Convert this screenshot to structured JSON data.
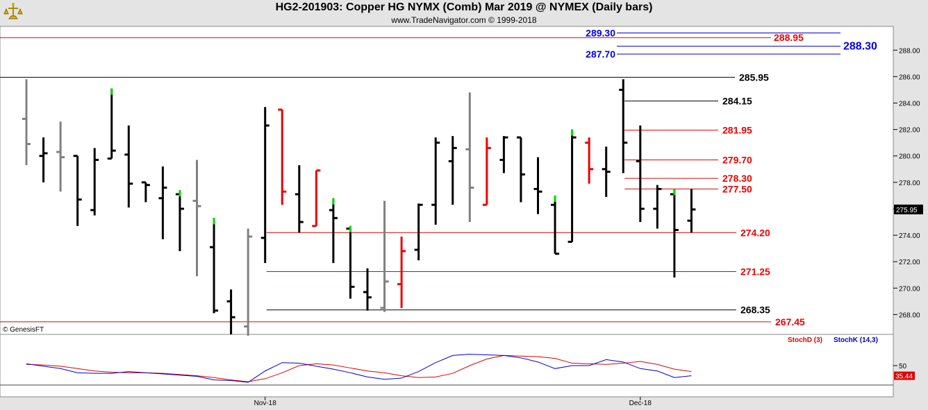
{
  "header": {
    "title": "HG2-201903:  Copper HG NYMX (Comb) Mar 2019 @ NYMEX  (Daily bars)",
    "subtitle": "www.TradeNavigator.com © 1999-2018",
    "watermark": "© GenesisFT"
  },
  "colors": {
    "up_bar": "#000000",
    "gray_bar": "#808080",
    "red_bar": "#ee0000",
    "green_tick": "#00dd00",
    "red_line": "#dd0000",
    "blue_line": "#0000cc",
    "stoch_d": "#dd0000",
    "stoch_k": "#0000cc"
  },
  "chart_data": [
    {
      "type": "ohlc",
      "title": "HG2-201903: Copper HG NYMX (Comb) Mar 2019 @ NYMEX (Daily bars)",
      "ylim": [
        266.5,
        289.8
      ],
      "yticks": [
        268.0,
        270.0,
        272.0,
        274.0,
        276.0,
        278.0,
        280.0,
        282.0,
        284.0,
        286.0,
        288.0
      ],
      "ytick_labels": [
        "268.00",
        "270.00",
        "272.00",
        "274.00",
        "276.00",
        "278.00",
        "280.00",
        "282.00",
        "284.00",
        "286.00",
        "288.00"
      ],
      "last_price": 275.95,
      "last_price_label": "275.95",
      "x_labels": [
        {
          "label": "Nov-18",
          "bar": 14
        },
        {
          "label": "Dec-18",
          "bar": 36
        }
      ],
      "bars": [
        {
          "o": 282.8,
          "h": 285.8,
          "l": 279.3,
          "c": 280.9,
          "color": "gray"
        },
        {
          "o": 280.0,
          "h": 281.4,
          "l": 278.0,
          "c": 280.2,
          "color": "black"
        },
        {
          "o": 280.3,
          "h": 282.6,
          "l": 277.3,
          "c": 279.9,
          "color": "gray"
        },
        {
          "o": 280.0,
          "h": 280.0,
          "l": 274.7,
          "c": 276.7,
          "color": "black"
        },
        {
          "o": 275.9,
          "h": 280.6,
          "l": 275.5,
          "c": 279.7,
          "color": "black"
        },
        {
          "o": 279.8,
          "h": 285.1,
          "l": 279.8,
          "c": 280.4,
          "color": "black",
          "green": true
        },
        {
          "o": 280.1,
          "h": 282.3,
          "l": 276.1,
          "c": 277.9,
          "color": "black"
        },
        {
          "o": 278.0,
          "h": 278.0,
          "l": 276.5,
          "c": 277.8,
          "color": "black"
        },
        {
          "o": 276.8,
          "h": 279.2,
          "l": 273.7,
          "c": 277.6,
          "color": "black"
        },
        {
          "o": 277.1,
          "h": 277.4,
          "l": 272.8,
          "c": 276.0,
          "color": "black",
          "green": true
        },
        {
          "o": 276.6,
          "h": 279.7,
          "l": 270.9,
          "c": 276.2,
          "color": "gray"
        },
        {
          "o": 273.1,
          "h": 275.3,
          "l": 268.1,
          "c": 268.3,
          "color": "black",
          "green": true
        },
        {
          "o": 269.0,
          "h": 269.9,
          "l": 266.5,
          "c": 267.8,
          "color": "black"
        },
        {
          "o": 267.1,
          "h": 274.5,
          "l": 266.4,
          "c": 273.9,
          "color": "gray"
        },
        {
          "o": 273.8,
          "h": 283.7,
          "l": 271.9,
          "c": 282.3,
          "color": "black"
        },
        {
          "o": 283.5,
          "h": 283.5,
          "l": 276.3,
          "c": 277.3,
          "color": "red"
        },
        {
          "o": 277.1,
          "h": 279.3,
          "l": 274.2,
          "c": 275.0,
          "color": "black"
        },
        {
          "o": 274.7,
          "h": 278.9,
          "l": 274.7,
          "c": 278.9,
          "color": "red"
        },
        {
          "o": 275.9,
          "h": 276.8,
          "l": 271.9,
          "c": 275.3,
          "color": "black",
          "green": true
        },
        {
          "o": 274.5,
          "h": 274.7,
          "l": 269.2,
          "c": 270.1,
          "color": "black",
          "green": true
        },
        {
          "o": 269.7,
          "h": 271.5,
          "l": 268.3,
          "c": 269.3,
          "color": "black"
        },
        {
          "o": 268.5,
          "h": 276.6,
          "l": 268.2,
          "c": 270.5,
          "color": "gray"
        },
        {
          "o": 270.3,
          "h": 273.9,
          "l": 268.5,
          "c": 272.8,
          "color": "red"
        },
        {
          "o": 272.9,
          "h": 276.4,
          "l": 272.1,
          "c": 276.3,
          "color": "black"
        },
        {
          "o": 276.3,
          "h": 281.4,
          "l": 274.8,
          "c": 281.0,
          "color": "black"
        },
        {
          "o": 279.6,
          "h": 281.5,
          "l": 276.3,
          "c": 280.6,
          "color": "black"
        },
        {
          "o": 280.5,
          "h": 284.8,
          "l": 275.0,
          "c": 277.6,
          "color": "gray"
        },
        {
          "o": 276.3,
          "h": 281.4,
          "l": 276.3,
          "c": 280.6,
          "color": "red"
        },
        {
          "o": 279.7,
          "h": 281.5,
          "l": 278.7,
          "c": 281.4,
          "color": "black"
        },
        {
          "o": 281.4,
          "h": 281.4,
          "l": 276.5,
          "c": 278.6,
          "color": "black"
        },
        {
          "o": 277.5,
          "h": 279.9,
          "l": 275.6,
          "c": 277.3,
          "color": "black"
        },
        {
          "o": 276.3,
          "h": 277.0,
          "l": 272.6,
          "c": 272.6,
          "color": "black",
          "green": true
        },
        {
          "o": 273.5,
          "h": 282.0,
          "l": 273.5,
          "c": 281.4,
          "color": "black",
          "green": true
        },
        {
          "o": 281.0,
          "h": 281.4,
          "l": 277.9,
          "c": 279.0,
          "color": "red"
        },
        {
          "o": 279.0,
          "h": 280.7,
          "l": 276.9,
          "c": 278.8,
          "color": "black"
        },
        {
          "o": 285.0,
          "h": 285.8,
          "l": 278.7,
          "c": 281.0,
          "color": "black"
        },
        {
          "o": 279.6,
          "h": 282.3,
          "l": 275.0,
          "c": 276.0,
          "color": "black"
        },
        {
          "o": 276.0,
          "h": 277.8,
          "l": 274.5,
          "c": 277.5,
          "color": "black"
        },
        {
          "o": 277.1,
          "h": 277.5,
          "l": 270.8,
          "c": 274.4,
          "color": "black",
          "green": true
        },
        {
          "o": 275.1,
          "h": 277.5,
          "l": 274.2,
          "c": 275.95,
          "color": "black"
        }
      ],
      "levels": [
        {
          "value": 289.3,
          "label": "289.30",
          "color": "blue",
          "label_side": "left",
          "x_from_bar": null
        },
        {
          "value": 288.95,
          "label": "288.95",
          "color": "red",
          "label_side": "right",
          "x_from_bar": null
        },
        {
          "value": 288.3,
          "label": "288.30",
          "color": "blue",
          "label_side": "right",
          "x_from_bar": null
        },
        {
          "value": 287.7,
          "label": "287.70",
          "color": "blue",
          "label_side": "left",
          "x_from_bar": null
        },
        {
          "value": 285.95,
          "label": "285.95",
          "color": "black",
          "label_side": "right",
          "x_from_bar": 0
        },
        {
          "value": 284.15,
          "label": "284.15",
          "color": "black",
          "label_side": "right",
          "x_from_bar": 35
        },
        {
          "value": 281.95,
          "label": "281.95",
          "color": "red",
          "label_side": "right",
          "x_from_bar": 35
        },
        {
          "value": 279.7,
          "label": "279.70",
          "color": "red",
          "label_side": "right",
          "x_from_bar": 35
        },
        {
          "value": 278.3,
          "label": "278.30",
          "color": "red",
          "label_side": "right",
          "x_from_bar": 35
        },
        {
          "value": 277.5,
          "label": "277.50",
          "color": "red",
          "label_side": "right",
          "x_from_bar": 35
        },
        {
          "value": 274.2,
          "label": "274.20",
          "color": "red",
          "label_side": "right",
          "x_from_bar": 14
        },
        {
          "value": 271.25,
          "label": "271.25",
          "color": "red",
          "label_side": "right",
          "x_from_bar": 14
        },
        {
          "value": 268.35,
          "label": "268.35",
          "color": "black",
          "label_side": "right",
          "x_from_bar": 14
        },
        {
          "value": 267.45,
          "label": "267.45",
          "color": "red",
          "label_side": "right",
          "x_from_bar": 0
        }
      ]
    },
    {
      "type": "line",
      "title": "StochD (3)  StochK (14,3)",
      "ylim": [
        0,
        100
      ],
      "yticks": [
        50
      ],
      "ytick_labels": [
        "50"
      ],
      "last_value_label": "35.44",
      "series": [
        {
          "name": "StochD (3)",
          "color": "red",
          "values": [
            52,
            51,
            49,
            45,
            41,
            39,
            38,
            38,
            37,
            35,
            33,
            30,
            26,
            23,
            28,
            38,
            50,
            53,
            51,
            46,
            41,
            38,
            33,
            30,
            31,
            37,
            50,
            61,
            67,
            66,
            65,
            62,
            54,
            53,
            52,
            54,
            57,
            52,
            44,
            40
          ]
        },
        {
          "name": "StochK (14,3)",
          "color": "blue",
          "values": [
            53,
            49,
            45,
            38,
            37,
            37,
            40,
            38,
            36,
            34,
            32,
            26,
            25,
            22,
            41,
            55,
            54,
            49,
            44,
            38,
            31,
            27,
            29,
            40,
            55,
            67,
            69,
            68,
            67,
            63,
            56,
            45,
            50,
            50,
            60,
            56,
            45,
            41,
            30,
            33
          ]
        }
      ]
    }
  ]
}
